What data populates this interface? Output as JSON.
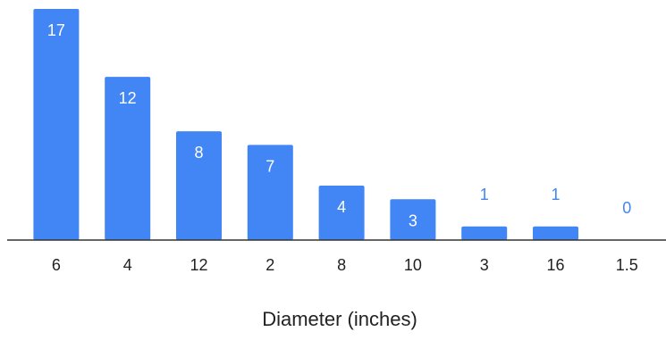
{
  "chart_data": {
    "type": "bar",
    "categories": [
      "6",
      "4",
      "12",
      "2",
      "8",
      "10",
      "3",
      "16",
      "1.5"
    ],
    "values": [
      17,
      12,
      8,
      7,
      4,
      3,
      1,
      1,
      0
    ],
    "xlabel": "Diameter (inches)",
    "ylabel": "",
    "ylim": [
      0,
      17
    ],
    "grid": false,
    "legend": "none",
    "bar_color": "#4285f4",
    "baseline_color": "#333333"
  }
}
